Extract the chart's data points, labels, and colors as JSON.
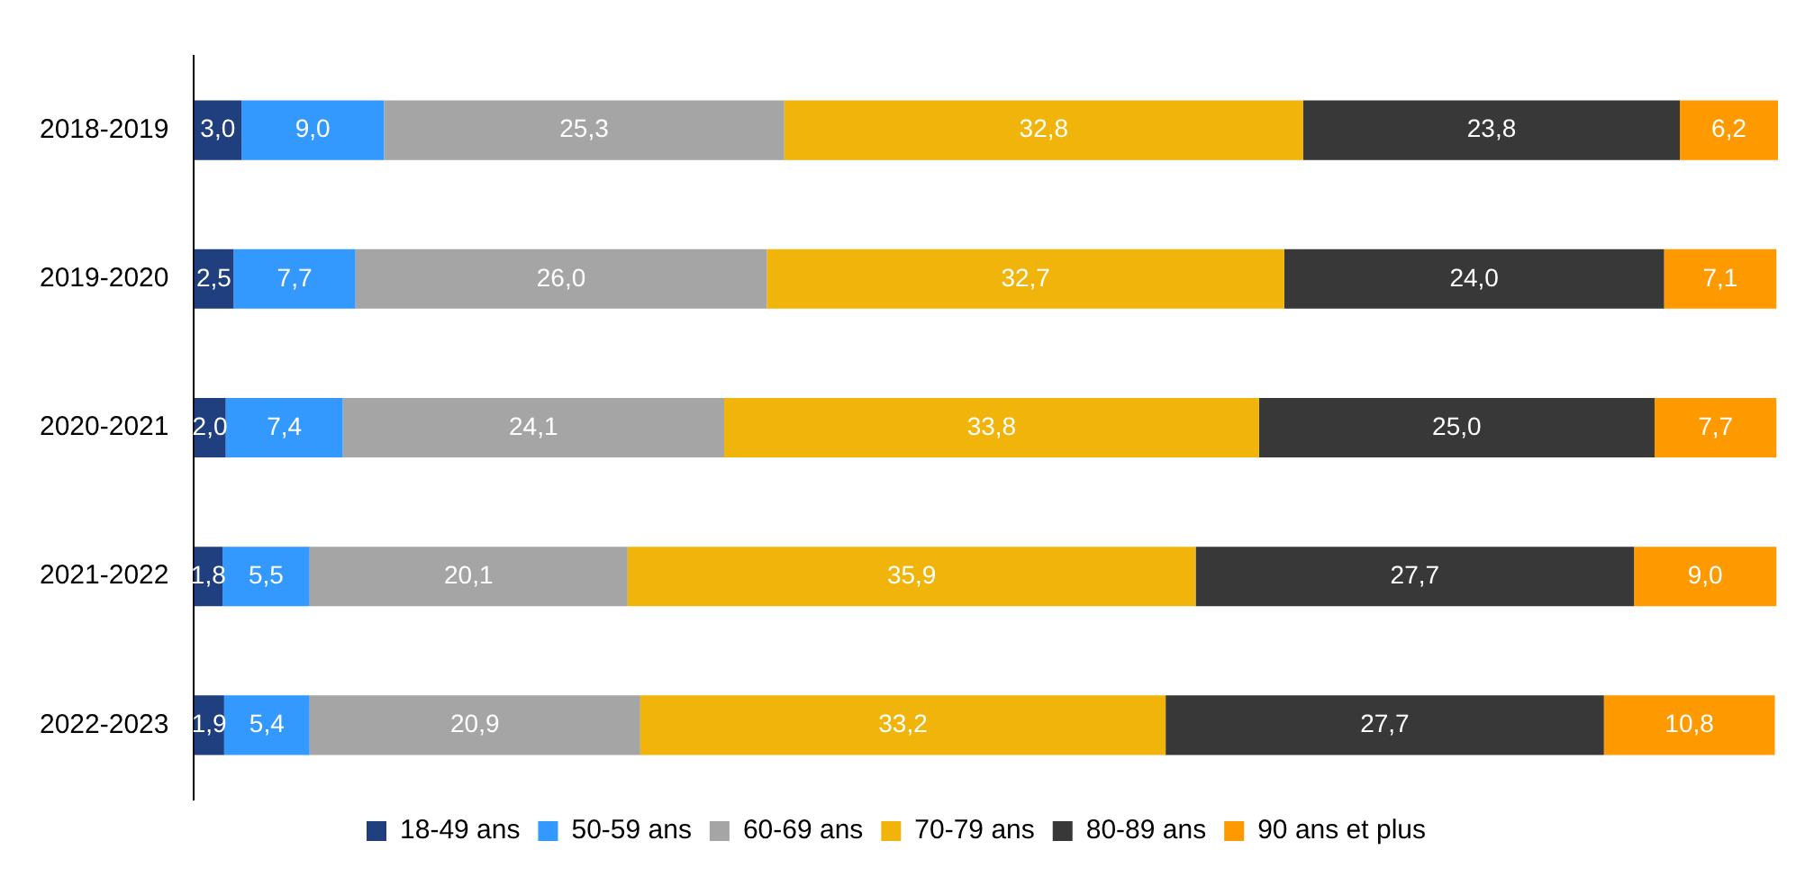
{
  "chart_data": {
    "type": "bar",
    "orientation": "horizontal",
    "stacked": true,
    "categories": [
      "2018-2019",
      "2019-2020",
      "2020-2021",
      "2021-2022",
      "2022-2023"
    ],
    "series": [
      {
        "name": "18-49 ans",
        "color": "#1f3f7f",
        "values": [
          3.0,
          2.5,
          2.0,
          1.8,
          1.9
        ],
        "value_labels": [
          "3,0",
          "2,5",
          "2,0",
          "1,8",
          "1,9"
        ]
      },
      {
        "name": "50-59 ans",
        "color": "#3399ff",
        "values": [
          9.0,
          7.7,
          7.4,
          5.5,
          5.4
        ],
        "value_labels": [
          "9,0",
          "7,7",
          "7,4",
          "5,5",
          "5,4"
        ]
      },
      {
        "name": "60-69 ans",
        "color": "#a5a5a5",
        "values": [
          25.3,
          26.0,
          24.1,
          20.1,
          20.9
        ],
        "value_labels": [
          "25,3",
          "26,0",
          "24,1",
          "20,1",
          "20,9"
        ]
      },
      {
        "name": "70-79 ans",
        "color": "#f0b40a",
        "values": [
          32.8,
          32.7,
          33.8,
          35.9,
          33.2
        ],
        "value_labels": [
          "32,8",
          "32,7",
          "33,8",
          "35,9",
          "33,2"
        ]
      },
      {
        "name": "80-89 ans",
        "color": "#383838",
        "values": [
          23.8,
          24.0,
          25.0,
          27.7,
          27.7
        ],
        "value_labels": [
          "23,8",
          "24,0",
          "25,0",
          "27,7",
          "27,7"
        ]
      },
      {
        "name": "90 ans et plus",
        "color": "#ff9900",
        "values": [
          6.2,
          7.1,
          7.7,
          9.0,
          10.8
        ],
        "value_labels": [
          "6,2",
          "7,1",
          "7,7",
          "9,0",
          "10,8"
        ]
      }
    ],
    "legend": "bottom",
    "tick_labels": "y"
  }
}
